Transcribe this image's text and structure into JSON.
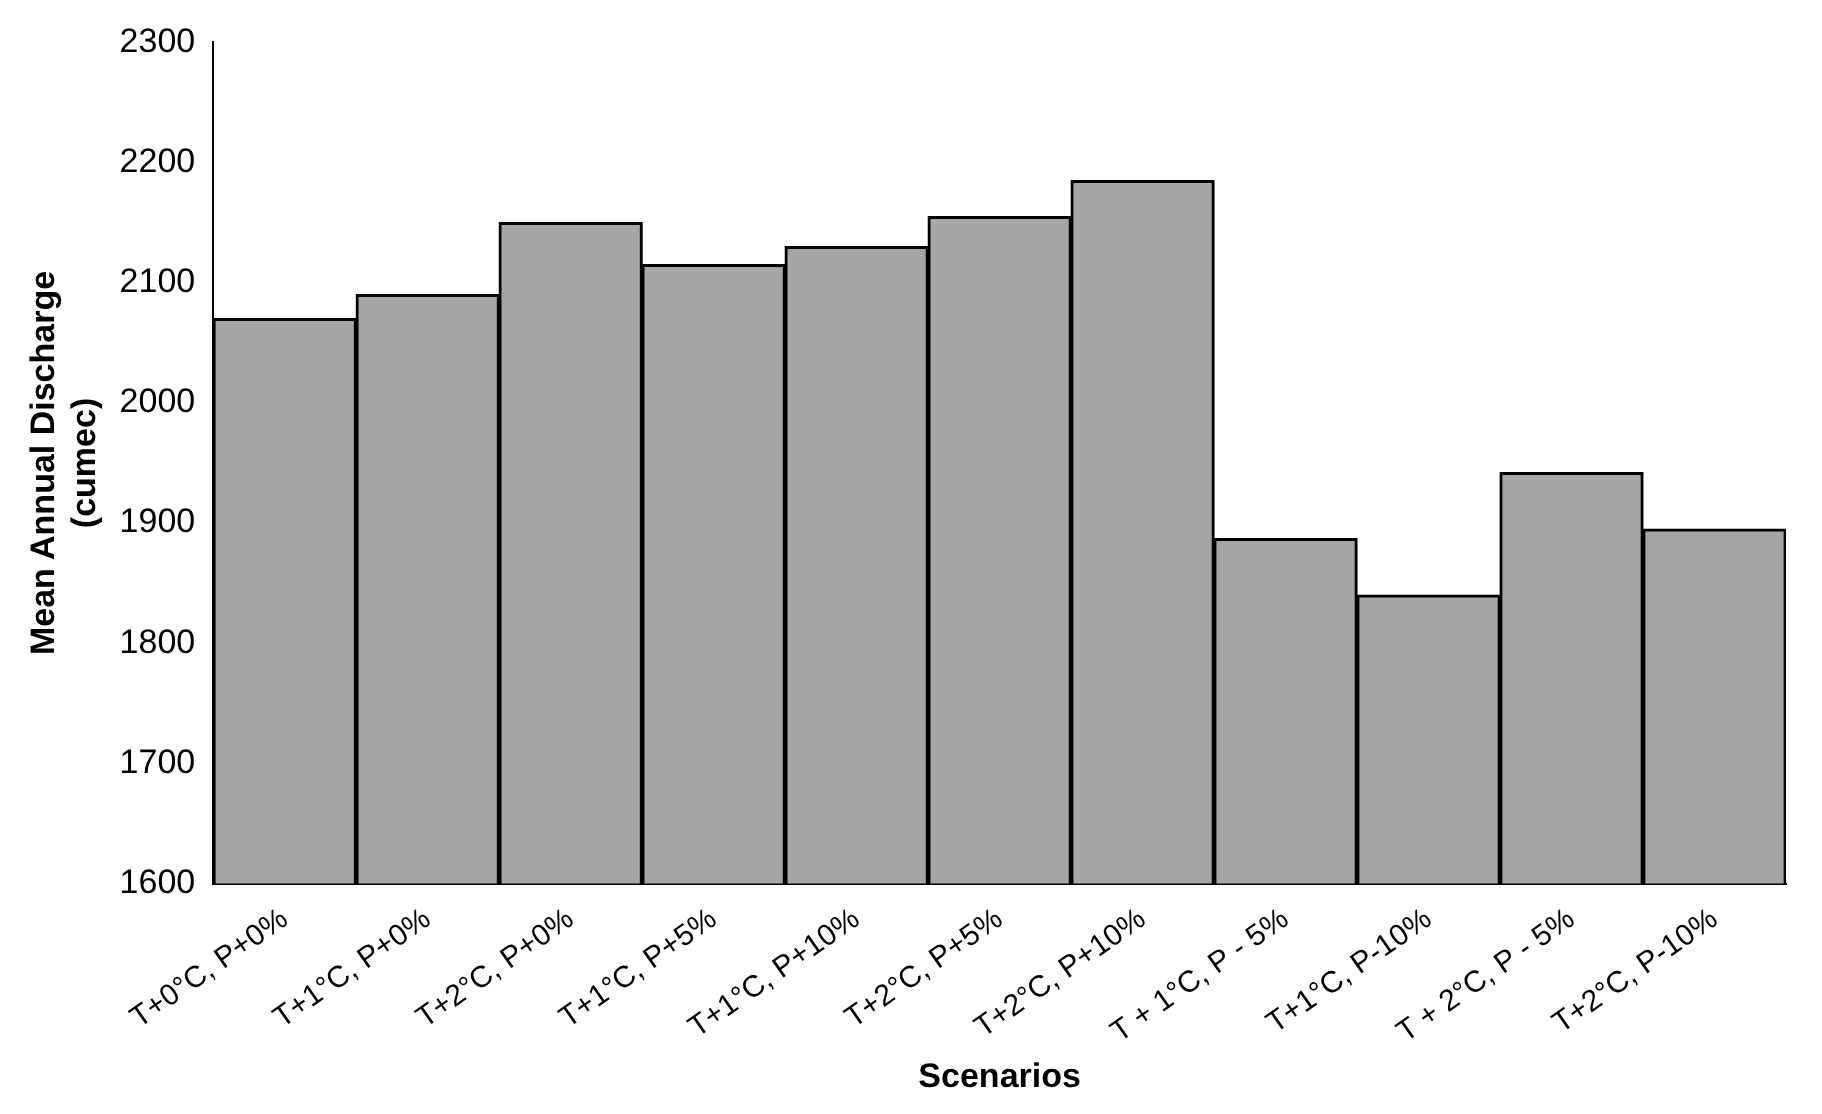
{
  "chart_data": {
    "type": "bar",
    "xlabel": "Scenarios",
    "ylabel": "Mean Annual Discharge (cumec)",
    "categories": [
      "T+0°C, P+0%",
      "T+1°C, P+0%",
      "T+2°C, P+0%",
      "T+1°C, P+5%",
      "T+1°C, P+10%",
      "T+2°C, P+5%",
      "T+2°C, P+10%",
      "T + 1°C, P - 5%",
      "T+1°C, P-10%",
      "T + 2°C, P - 5%",
      "T+2°C, P-10%"
    ],
    "values": [
      2070,
      2090,
      2150,
      2115,
      2130,
      2155,
      2185,
      1887,
      1840,
      1942,
      1895
    ],
    "color": "#a6a6a6",
    "ylim": [
      1600,
      2300
    ],
    "yticks": [
      1600,
      1700,
      1800,
      1900,
      2000,
      2100,
      2200,
      2300
    ],
    "grid": false,
    "legend": false
  }
}
